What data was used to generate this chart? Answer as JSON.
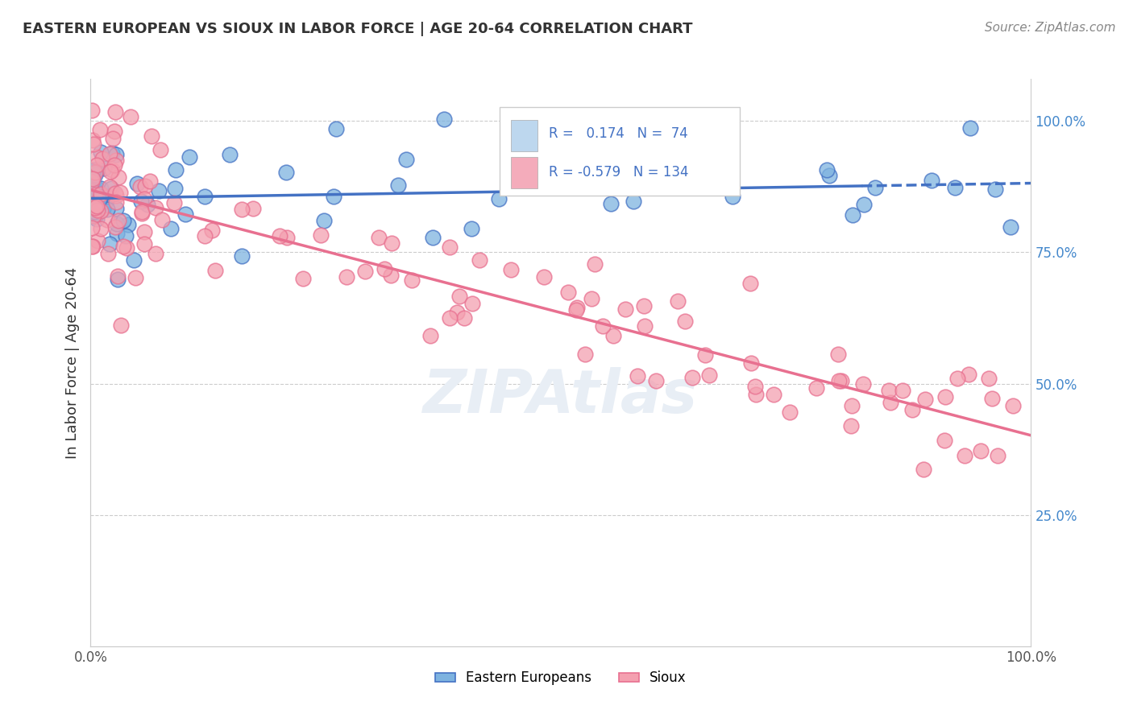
{
  "title": "EASTERN EUROPEAN VS SIOUX IN LABOR FORCE | AGE 20-64 CORRELATION CHART",
  "source": "Source: ZipAtlas.com",
  "ylabel": "In Labor Force | Age 20-64",
  "r_eastern": 0.174,
  "n_eastern": 74,
  "r_sioux": -0.579,
  "n_sioux": 134,
  "color_eastern": "#7EB3E0",
  "color_sioux": "#F4A0B0",
  "color_line_eastern": "#4472C4",
  "color_line_sioux": "#E87090",
  "background_color": "#FFFFFF",
  "grid_color": "#CCCCCC",
  "legend_box_color_eastern": "#BDD7EE",
  "legend_box_color_sioux": "#F4ACBB",
  "legend_text_color": "#4472C4",
  "right_axis_color": "#4488CC",
  "watermark_color": "#E8EEF5",
  "title_color": "#333333",
  "source_color": "#888888",
  "xlabel_color": "#555555"
}
